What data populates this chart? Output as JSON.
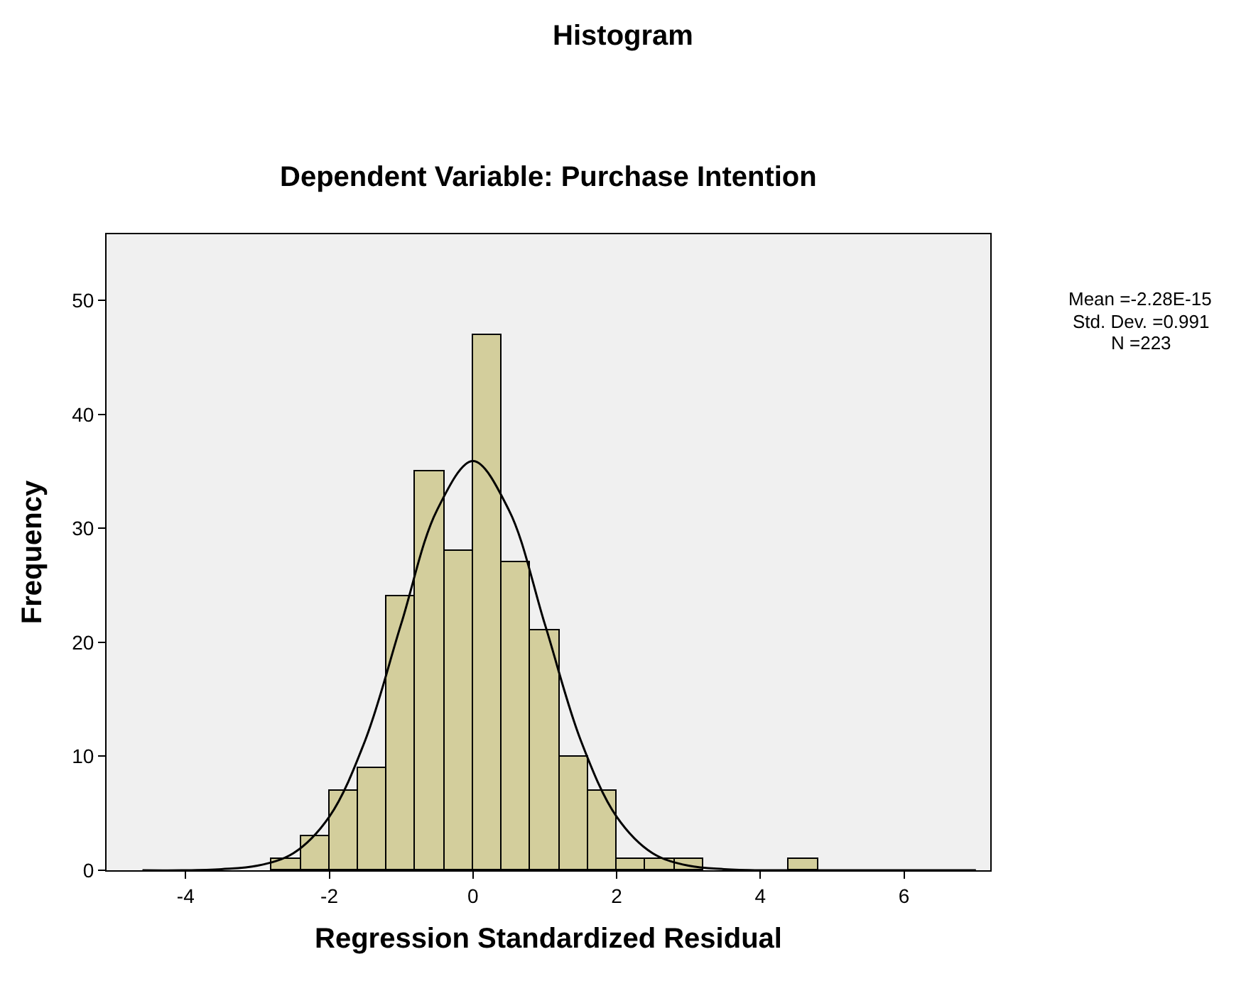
{
  "chart_data": {
    "type": "histogram",
    "title": "Histogram",
    "subtitle": "Dependent Variable: Purchase Intention",
    "xlabel": "Regression Standardized Residual",
    "ylabel": "Frequency",
    "bins": [
      -2.8,
      -2.4,
      -2.0,
      -1.6,
      -1.2,
      -0.8,
      -0.4,
      0,
      0.4,
      0.8,
      1.2,
      1.6,
      2.0,
      2.4,
      2.8,
      3.2,
      3.6,
      4.0,
      4.4,
      4.8
    ],
    "values": [
      1,
      3,
      7,
      9,
      24,
      35,
      28,
      47,
      27,
      21,
      10,
      7,
      1,
      1,
      1,
      0,
      0,
      0,
      1
    ],
    "color": "#d3ce9c",
    "series": [
      {
        "type": "line",
        "color": "#000000",
        "x": [
          -4.6,
          -4,
          -3.5,
          -3,
          -2.5,
          -2,
          -1.5,
          -1,
          -0.5,
          0,
          0.5,
          1,
          1.5,
          2,
          2.5,
          3,
          3.5,
          4,
          4.6,
          5.5,
          7
        ],
        "values": [
          0,
          0,
          0.1,
          0.4,
          1.5,
          4.7,
          11.4,
          21.6,
          31.6,
          35.9,
          31.6,
          21.6,
          11.4,
          4.7,
          1.5,
          0.4,
          0.1,
          0,
          0,
          0,
          0
        ]
      }
    ],
    "xlim": [
      -5.1,
      7.2
    ],
    "xticks": [
      -4,
      -2,
      0,
      2,
      4,
      6
    ],
    "ylim": [
      0,
      55.8
    ],
    "yticks": [
      0,
      10,
      20,
      30,
      40,
      50
    ],
    "annotations": [
      "Mean =-2.28E-15",
      "Std. Dev. =0.991",
      "N =223"
    ],
    "grid": false
  }
}
